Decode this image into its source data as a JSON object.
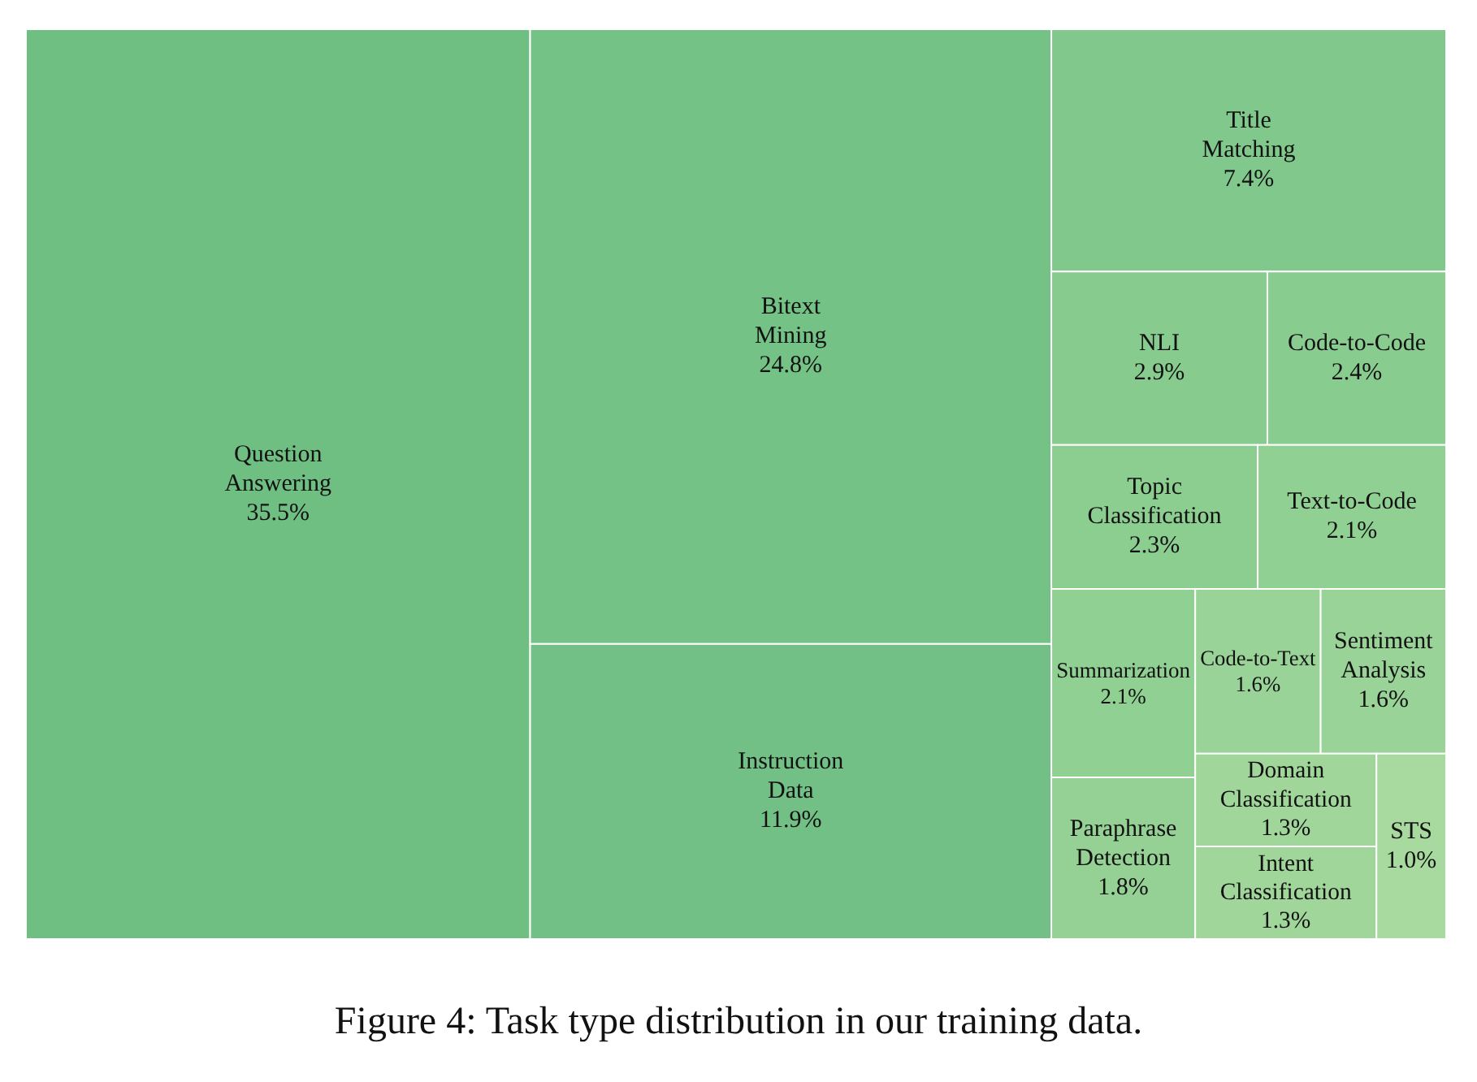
{
  "chart_data": {
    "type": "other",
    "title": "Figure 4: Task type distribution in our training data.",
    "categories": [
      "Question Answering",
      "Bitext Mining",
      "Instruction Data",
      "Title Matching",
      "NLI",
      "Code-to-Code",
      "Topic Classification",
      "Text-to-Code",
      "Summarization",
      "Paraphrase Detection",
      "Code-to-Text",
      "Sentiment Analysis",
      "Domain Classification",
      "Intent Classification",
      "STS"
    ],
    "values": [
      35.5,
      24.8,
      11.9,
      7.4,
      2.9,
      2.4,
      2.3,
      2.1,
      2.1,
      1.8,
      1.6,
      1.6,
      1.3,
      1.3,
      1.0
    ],
    "value_labels": [
      "35.5%",
      "24.8%",
      "11.9%",
      "7.4%",
      "2.9%",
      "2.4%",
      "2.3%",
      "2.1%",
      "2.1%",
      "1.8%",
      "1.6%",
      "1.6%",
      "1.3%",
      "1.3%",
      "1.0%"
    ],
    "colors": [
      "#6fbf83",
      "#74c285",
      "#72c085",
      "#80c88c",
      "#87cb8e",
      "#89cc8f",
      "#8ccd90",
      "#91d093",
      "#91d093",
      "#95d195",
      "#99d397",
      "#99d397",
      "#a0d69a",
      "#a0d69a",
      "#a8daa0"
    ]
  }
}
